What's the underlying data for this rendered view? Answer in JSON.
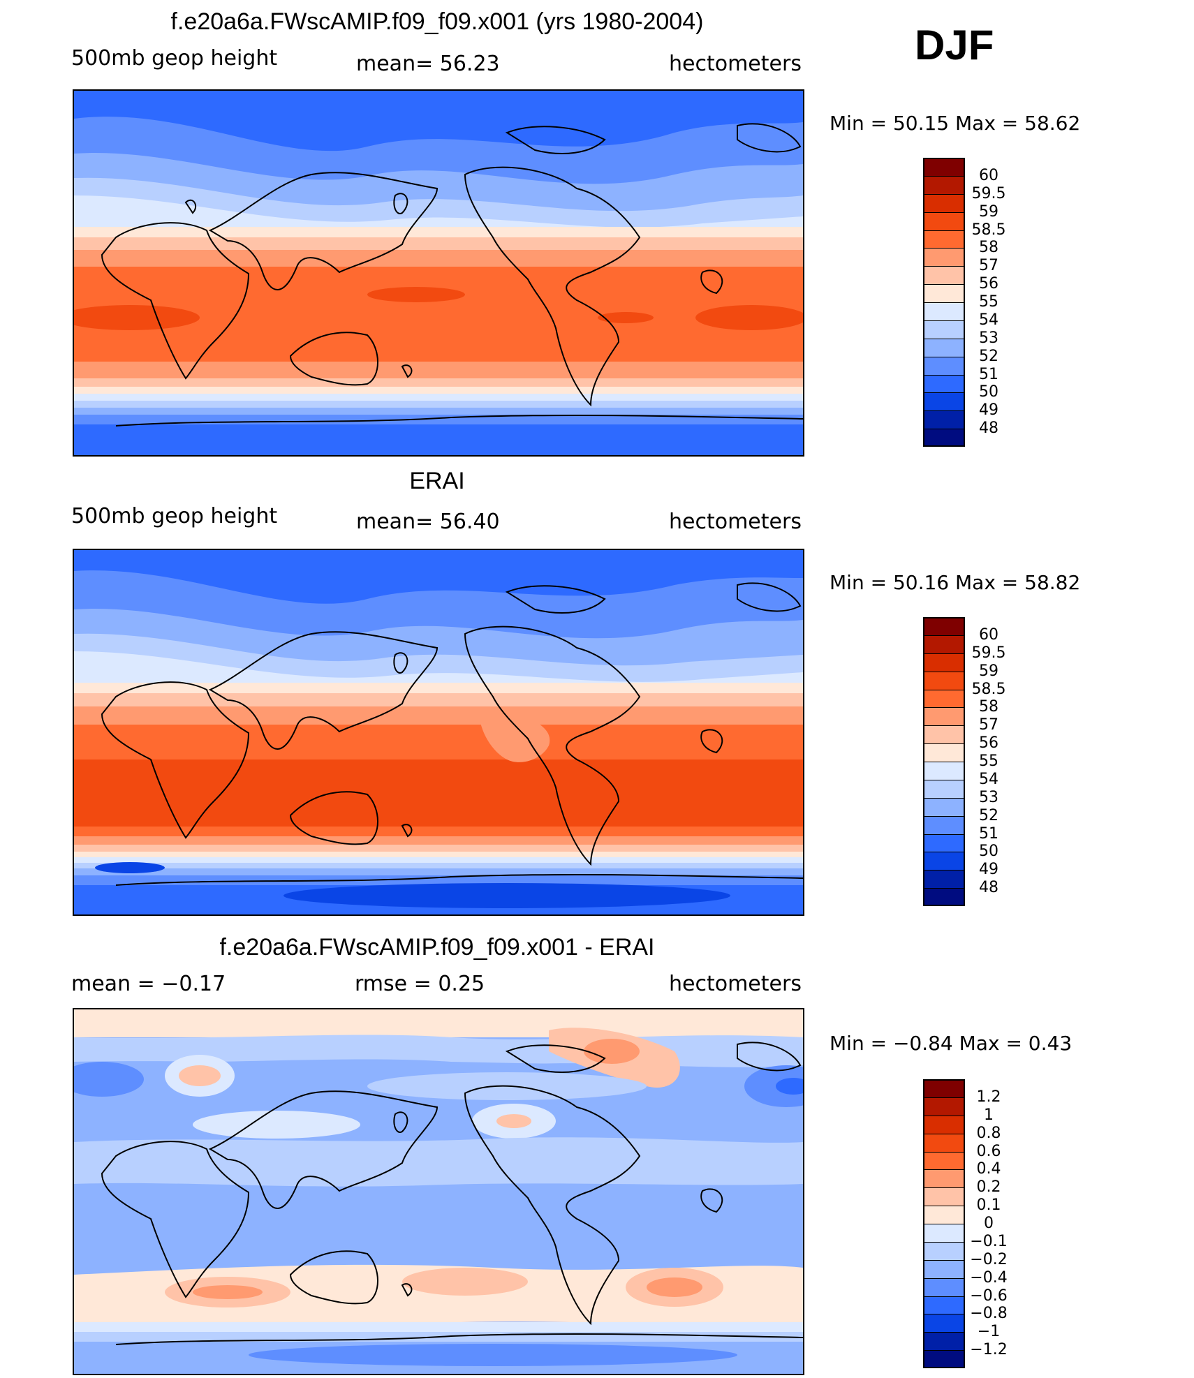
{
  "season": "DJF",
  "panels": [
    {
      "title": "f.e20a6a.FWscAMIP.f09_f09.x001 (yrs 1980-2004)",
      "left": "500mb  geop  height",
      "middle": "mean=   56.23",
      "right": "hectometers",
      "minmax": "Min  =    50.15  Max  =    58.62",
      "colorbar": {
        "labels": [
          "60",
          "59.5",
          "59",
          "58.5",
          "58",
          "57",
          "56",
          "55",
          "54",
          "53",
          "52",
          "51",
          "50",
          "49",
          "48"
        ],
        "colors": [
          "#7f0000",
          "#b31800",
          "#d92e00",
          "#f24a10",
          "#ff6a30",
          "#ff9a70",
          "#ffc3a8",
          "#ffe8d8",
          "#dce9ff",
          "#b8d0ff",
          "#8db2ff",
          "#5e8eff",
          "#2e6aff",
          "#0a45e6",
          "#0020a8",
          "#000c80"
        ]
      }
    },
    {
      "title": "ERAI",
      "left": "500mb  geop  height",
      "middle": "mean=   56.40",
      "right": "hectometers",
      "minmax": "Min  =    50.16  Max  =    58.82",
      "colorbar": {
        "labels": [
          "60",
          "59.5",
          "59",
          "58.5",
          "58",
          "57",
          "56",
          "55",
          "54",
          "53",
          "52",
          "51",
          "50",
          "49",
          "48"
        ],
        "colors": [
          "#7f0000",
          "#b31800",
          "#d92e00",
          "#f24a10",
          "#ff6a30",
          "#ff9a70",
          "#ffc3a8",
          "#ffe8d8",
          "#dce9ff",
          "#b8d0ff",
          "#8db2ff",
          "#5e8eff",
          "#2e6aff",
          "#0a45e6",
          "#0020a8",
          "#000c80"
        ]
      }
    },
    {
      "title": "f.e20a6a.FWscAMIP.f09_f09.x001 - ERAI",
      "left": "mean  =    −0.17",
      "middle": "rmse  =     0.25",
      "right": "hectometers",
      "minmax": "Min  =    −0.84  Max  =      0.43",
      "colorbar": {
        "labels": [
          "1.2",
          "1",
          "0.8",
          "0.6",
          "0.4",
          "0.2",
          "0.1",
          "0",
          "−0.1",
          "−0.2",
          "−0.4",
          "−0.6",
          "−0.8",
          "−1",
          "−1.2"
        ],
        "colors": [
          "#7f0000",
          "#b31800",
          "#d92e00",
          "#f24a10",
          "#ff6a30",
          "#ff9a70",
          "#ffc3a8",
          "#ffe8d8",
          "#dce9ff",
          "#b8d0ff",
          "#8db2ff",
          "#5e8eff",
          "#2e6aff",
          "#0a45e6",
          "#0020a8",
          "#000c80"
        ]
      }
    }
  ]
}
